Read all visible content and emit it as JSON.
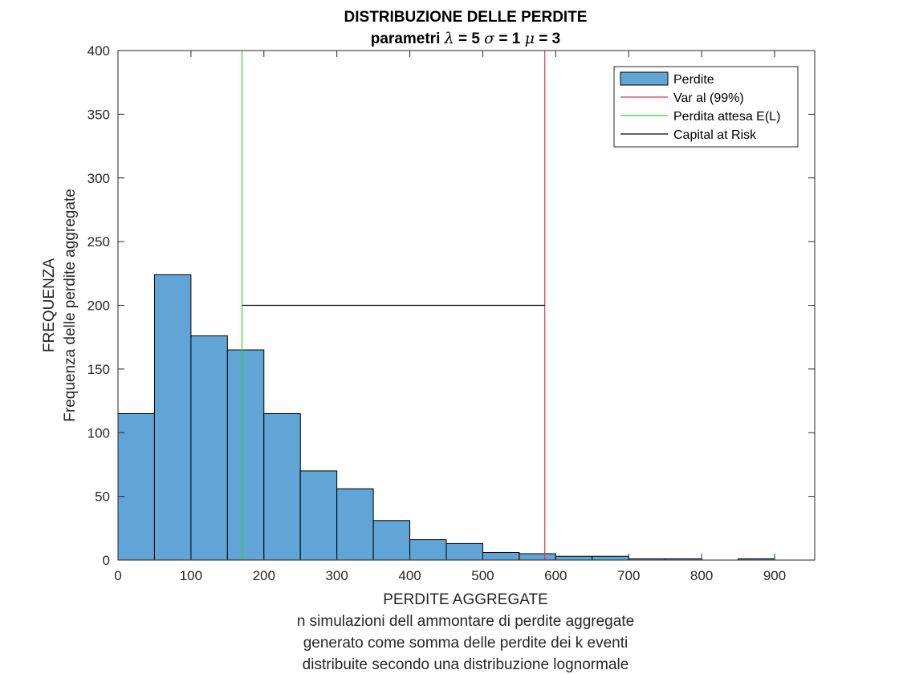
{
  "chart_data": {
    "type": "bar",
    "title": "DISTRIBUZIONE DELLE PERDITE",
    "subtitle": {
      "prefix": "parametri",
      "params": [
        {
          "symbol": "λ",
          "value": "= 5"
        },
        {
          "symbol": "σ",
          "value": "= 1"
        },
        {
          "symbol": "μ",
          "value": "= 3"
        }
      ]
    },
    "xlabel": "PERDITE AGGREGATE",
    "xlabel_lines": [
      "n simulazioni dell ammontare di perdite aggregate",
      "generato come somma delle perdite dei k eventi",
      "distribuite secondo una distribuzione lognormale"
    ],
    "ylabel_lines": [
      "FREQUENZA",
      "Frequenza delle perdite aggregate"
    ],
    "xlim": [
      0,
      955
    ],
    "ylim": [
      0,
      400
    ],
    "xticks": [
      0,
      100,
      200,
      300,
      400,
      500,
      600,
      700,
      800,
      900
    ],
    "yticks": [
      0,
      50,
      100,
      150,
      200,
      250,
      300,
      350,
      400
    ],
    "bin_edges": [
      0,
      50,
      100,
      150,
      200,
      250,
      300,
      350,
      400,
      450,
      500,
      550,
      600,
      650,
      700,
      750,
      800,
      850,
      900,
      950
    ],
    "counts": [
      115,
      224,
      176,
      165,
      115,
      70,
      56,
      31,
      16,
      13,
      6,
      5,
      3,
      3,
      1,
      1,
      0,
      1,
      0
    ],
    "bar_color": "#61a5d6",
    "vlines": [
      {
        "name": "Var al (99%)",
        "x": 585,
        "color": "#e8343a"
      },
      {
        "name": "Perdita attesa E(L)",
        "x": 170,
        "color": "#2ed82e"
      }
    ],
    "hline": {
      "name": "Capital at Risk",
      "y": 200,
      "x0": 170,
      "x1": 585,
      "color": "#000000"
    },
    "legend": {
      "position": "top-right",
      "items": [
        {
          "label": "Perdite",
          "kind": "patch",
          "color": "#61a5d6"
        },
        {
          "label": "Var al (99%)",
          "kind": "line",
          "color": "#e8343a"
        },
        {
          "label": "Perdita attesa E(L)",
          "kind": "line",
          "color": "#2ed82e"
        },
        {
          "label": "Capital at Risk",
          "kind": "line",
          "color": "#000000"
        }
      ]
    },
    "grid": false
  }
}
